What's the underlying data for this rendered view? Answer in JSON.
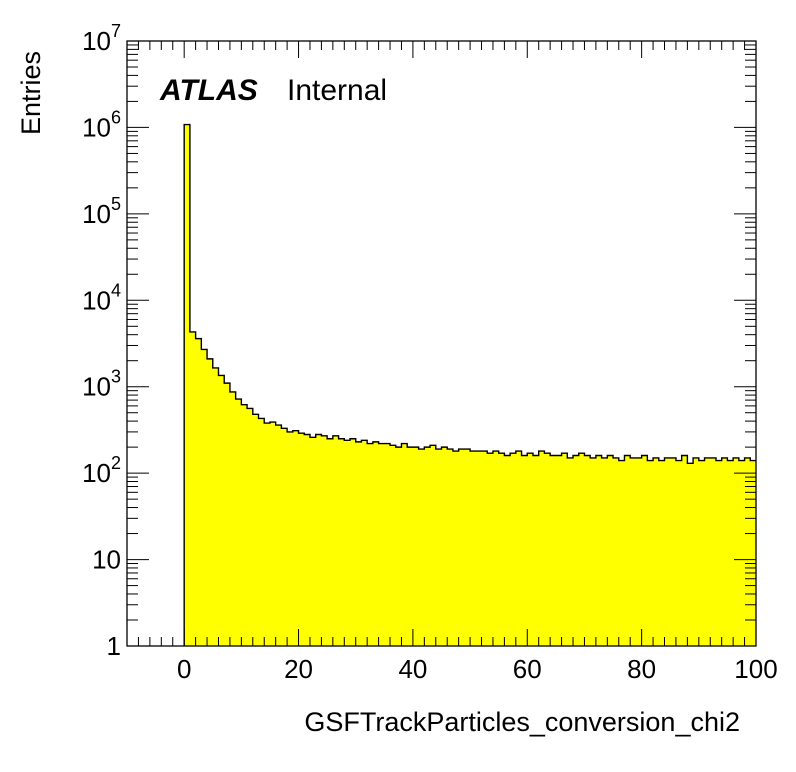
{
  "chart_data": {
    "type": "histogram",
    "xlabel": "GSFTrackParticles_conversion_chi2",
    "ylabel": "Entries",
    "label_bold": "ATLAS",
    "label_status": "Internal",
    "xlim": [
      -10,
      100
    ],
    "ylim": [
      1,
      10000000
    ],
    "y_scale": "log",
    "x_ticks": [
      0,
      20,
      40,
      60,
      80,
      100
    ],
    "x_tick_labels": [
      "0",
      "20",
      "40",
      "60",
      "80",
      "100"
    ],
    "y_tick_labels": [
      {
        "value": 1,
        "base": "1",
        "exp": ""
      },
      {
        "value": 10,
        "base": "10",
        "exp": ""
      },
      {
        "value": 100,
        "base": "10",
        "exp": "2"
      },
      {
        "value": 1000,
        "base": "10",
        "exp": "3"
      },
      {
        "value": 10000,
        "base": "10",
        "exp": "4"
      },
      {
        "value": 100000,
        "base": "10",
        "exp": "5"
      },
      {
        "value": 1000000,
        "base": "10",
        "exp": "6"
      },
      {
        "value": 10000000,
        "base": "10",
        "exp": "7"
      }
    ],
    "bin_width": 1,
    "bin_start": 0,
    "fill_color": "#ffff00",
    "line_color": "#000000",
    "counts": [
      1080000,
      4300,
      3600,
      2700,
      2100,
      1650,
      1350,
      1100,
      870,
      720,
      620,
      560,
      480,
      430,
      380,
      390,
      360,
      330,
      300,
      310,
      290,
      280,
      260,
      280,
      270,
      250,
      270,
      250,
      240,
      250,
      230,
      240,
      220,
      230,
      220,
      220,
      210,
      200,
      220,
      200,
      200,
      190,
      200,
      210,
      190,
      200,
      190,
      180,
      190,
      190,
      180,
      180,
      180,
      170,
      180,
      170,
      160,
      170,
      180,
      160,
      170,
      160,
      180,
      170,
      160,
      160,
      170,
      150,
      160,
      170,
      160,
      150,
      160,
      150,
      160,
      150,
      140,
      160,
      150,
      150,
      160,
      140,
      150,
      140,
      150,
      150,
      140,
      160,
      130,
      150,
      140,
      150,
      150,
      140,
      150,
      140,
      150,
      140,
      150,
      140
    ]
  }
}
